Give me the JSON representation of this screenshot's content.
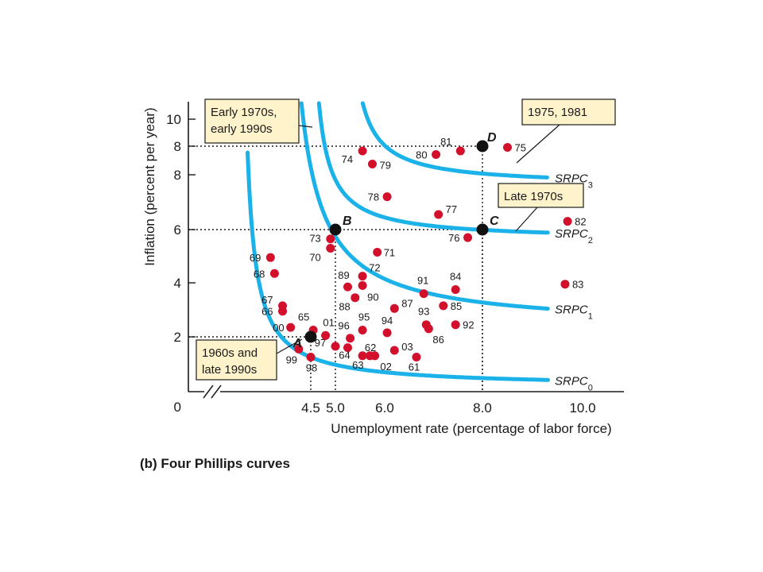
{
  "chart_data": {
    "type": "scatter",
    "title": "",
    "caption": "(b) Four Phillips curves",
    "xlabel": "Unemployment rate (percentage of labor force)",
    "ylabel": "Inflation (percent per year)",
    "x_ticks": [
      "4.5",
      "5.0",
      "6.0",
      "8.0",
      "10.0"
    ],
    "y_ticks": [
      "0",
      "2",
      "4",
      "6",
      "8",
      "8",
      "10"
    ],
    "origin_label": "0",
    "axis_break": true,
    "grid": false,
    "colors": {
      "curve": "#1ab2e8",
      "point": "#d2102c",
      "key_point": "#111111",
      "box_fill": "#fff3cc",
      "axis": "#1a1a1a"
    },
    "points": [
      {
        "label": "61",
        "x": 6.65,
        "y": 1.25
      },
      {
        "label": "62",
        "x": 5.55,
        "y": 1.3
      },
      {
        "label": "63",
        "x": 5.7,
        "y": 1.3
      },
      {
        "label": "64",
        "x": 5.25,
        "y": 1.6
      },
      {
        "label": "65",
        "x": 4.55,
        "y": 2.25
      },
      {
        "label": "66",
        "x": 3.8,
        "y": 2.95
      },
      {
        "label": "67",
        "x": 3.8,
        "y": 3.15
      },
      {
        "label": "68",
        "x": 3.6,
        "y": 4.35
      },
      {
        "label": "69",
        "x": 3.5,
        "y": 4.95
      },
      {
        "label": "70",
        "x": 4.9,
        "y": 5.3
      },
      {
        "label": "71",
        "x": 5.85,
        "y": 5.15
      },
      {
        "label": "72",
        "x": 5.55,
        "y": 4.25
      },
      {
        "label": "73",
        "x": 4.9,
        "y": 5.65
      },
      {
        "label": "74",
        "x": 5.55,
        "y": 9.0
      },
      {
        "label": "75",
        "x": 8.5,
        "y": 9.15
      },
      {
        "label": "76",
        "x": 7.7,
        "y": 5.7
      },
      {
        "label": "77",
        "x": 7.1,
        "y": 6.55
      },
      {
        "label": "78",
        "x": 6.05,
        "y": 7.2
      },
      {
        "label": "79",
        "x": 5.75,
        "y": 8.45
      },
      {
        "label": "80",
        "x": 7.05,
        "y": 8.85
      },
      {
        "label": "81",
        "x": 7.55,
        "y": 9.0
      },
      {
        "label": "82",
        "x": 9.7,
        "y": 6.3
      },
      {
        "label": "83",
        "x": 9.65,
        "y": 3.95
      },
      {
        "label": "84",
        "x": 7.45,
        "y": 3.75
      },
      {
        "label": "85",
        "x": 7.2,
        "y": 3.15
      },
      {
        "label": "86",
        "x": 6.9,
        "y": 2.3
      },
      {
        "label": "87",
        "x": 6.2,
        "y": 3.05
      },
      {
        "label": "88",
        "x": 5.4,
        "y": 3.45
      },
      {
        "label": "89",
        "x": 5.25,
        "y": 3.85
      },
      {
        "label": "90",
        "x": 5.55,
        "y": 3.9
      },
      {
        "label": "91",
        "x": 6.8,
        "y": 3.6
      },
      {
        "label": "92",
        "x": 7.45,
        "y": 2.45
      },
      {
        "label": "93",
        "x": 6.85,
        "y": 2.45
      },
      {
        "label": "94",
        "x": 6.05,
        "y": 2.15
      },
      {
        "label": "95",
        "x": 5.55,
        "y": 2.25
      },
      {
        "label": "96",
        "x": 5.3,
        "y": 1.95
      },
      {
        "label": "97",
        "x": 5.0,
        "y": 1.65
      },
      {
        "label": "98",
        "x": 4.5,
        "y": 1.25
      },
      {
        "label": "99",
        "x": 4.2,
        "y": 1.55
      },
      {
        "label": "00",
        "x": 4.0,
        "y": 2.35
      },
      {
        "label": "01",
        "x": 4.8,
        "y": 2.05
      },
      {
        "label": "02",
        "x": 5.8,
        "y": 1.3
      },
      {
        "label": "03",
        "x": 6.2,
        "y": 1.5
      }
    ],
    "key_points": [
      {
        "label": "A",
        "x": 4.5,
        "y": 2.0
      },
      {
        "label": "B",
        "x": 5.0,
        "y": 6.0
      },
      {
        "label": "C",
        "x": 8.0,
        "y": 6.0
      },
      {
        "label": "D",
        "x": 8.0,
        "y": 9.2
      }
    ],
    "curves": [
      {
        "name": "SRPC",
        "subscript": "0"
      },
      {
        "name": "SRPC",
        "subscript": "1"
      },
      {
        "name": "SRPC",
        "subscript": "2"
      },
      {
        "name": "SRPC",
        "subscript": "3"
      }
    ],
    "annotations": [
      {
        "lines": [
          "Early 1970s,",
          "early 1990s"
        ]
      },
      {
        "lines": [
          "1975, 1981"
        ]
      },
      {
        "lines": [
          "Late 1970s"
        ]
      },
      {
        "lines": [
          "1960s and",
          "late 1990s"
        ]
      }
    ]
  }
}
